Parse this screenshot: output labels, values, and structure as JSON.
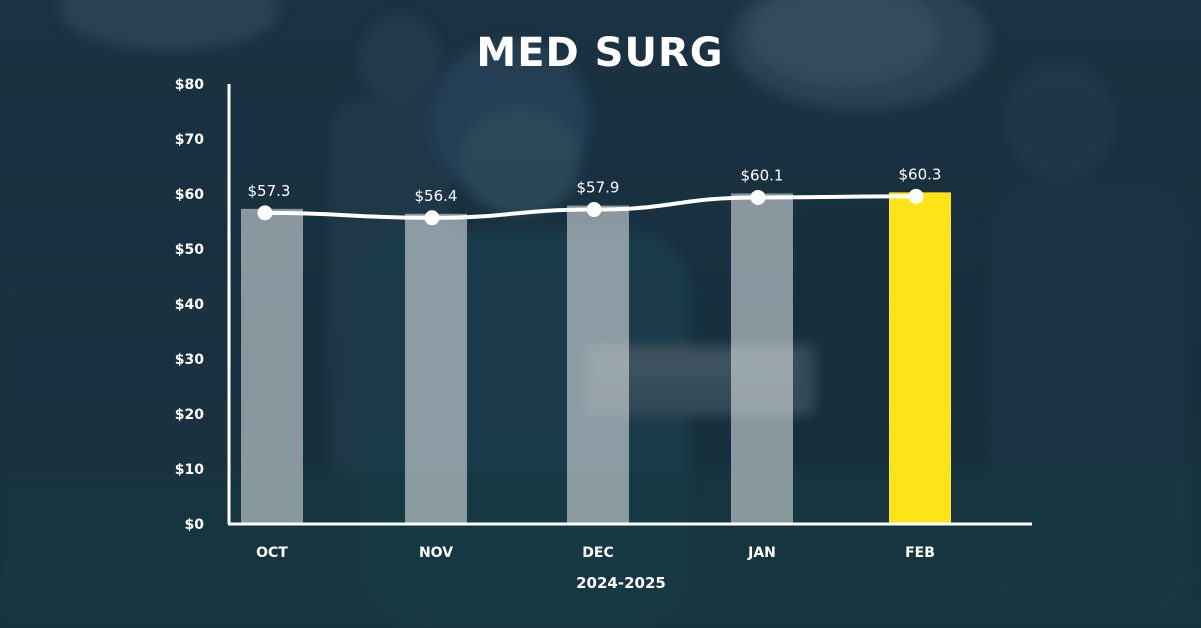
{
  "chart_data": {
    "type": "bar",
    "title": "MED SURG",
    "xlabel": "2024-2025",
    "ylabel": "",
    "categories": [
      "OCT",
      "NOV",
      "DEC",
      "JAN",
      "FEB"
    ],
    "series": [
      {
        "values": [
          57.3,
          56.4,
          57.9,
          60.1,
          60.3
        ]
      }
    ],
    "data_labels": [
      "$57.3",
      "$56.4",
      "$57.9",
      "$60.1",
      "$60.3"
    ],
    "overlay_line": true,
    "ylim": [
      0,
      80
    ],
    "yticks": [
      0,
      10,
      20,
      30,
      40,
      50,
      60,
      70,
      80
    ],
    "ytick_labels": [
      "$0",
      "$10",
      "$20",
      "$30",
      "$40",
      "$50",
      "$60",
      "$70",
      "$80"
    ],
    "highlight_index": 4,
    "grid": false,
    "colors": {
      "bar": "#e9ecef",
      "bar_highlight": "#ffe31a",
      "line": "#ffffff",
      "axis": "#ffffff",
      "text": "#ffffff"
    }
  }
}
